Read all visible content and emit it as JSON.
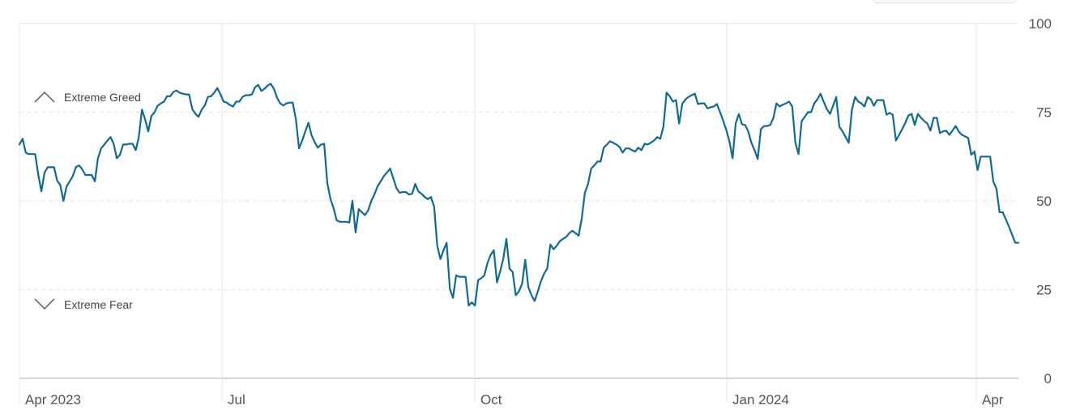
{
  "chart_data": {
    "type": "line",
    "ylim": [
      0,
      100
    ],
    "y_ticks": [
      0,
      25,
      50,
      75,
      100
    ],
    "x_tick_labels": [
      "Apr 2023",
      "Jul",
      "Oct",
      "Jan 2024",
      "Apr"
    ],
    "annotations": [
      {
        "text": "Extreme Greed",
        "icon": "chevron-up-icon"
      },
      {
        "text": "Extreme Fear",
        "icon": "chevron-down-icon"
      }
    ],
    "line_color": "#0e6a96",
    "grid": true,
    "series": [
      {
        "values": [
          65.9,
          67.5,
          63.6,
          63.2,
          63.2,
          63.2,
          57.3,
          52.7,
          58.0,
          59.5,
          59.5,
          59.5,
          55.7,
          54.5,
          50.0,
          54.1,
          55.5,
          57.0,
          59.6,
          60.0,
          58.9,
          57.3,
          57.3,
          57.3,
          55.5,
          62.0,
          64.8,
          65.9,
          67.0,
          68.0,
          66.1,
          62.0,
          63.0,
          65.9,
          65.9,
          66.1,
          66.1,
          64.3,
          68.0,
          75.7,
          73.0,
          69.6,
          73.9,
          75.0,
          76.8,
          77.5,
          78.0,
          79.5,
          79.5,
          80.7,
          81.1,
          80.5,
          80.2,
          80.0,
          80.0,
          75.9,
          74.6,
          73.7,
          75.7,
          76.9,
          79.3,
          79.5,
          80.5,
          81.8,
          80.0,
          78.0,
          77.7,
          77.0,
          76.6,
          78.0,
          78.0,
          79.3,
          79.8,
          79.8,
          80.0,
          82.0,
          82.7,
          81.0,
          81.6,
          82.5,
          83.0,
          81.6,
          79.1,
          77.5,
          76.9,
          77.5,
          77.7,
          77.7,
          73.0,
          64.8,
          67.0,
          69.6,
          72.0,
          68.5,
          66.5,
          65.0,
          65.9,
          66.1,
          55.0,
          50.5,
          48.0,
          44.5,
          44.1,
          44.1,
          44.1,
          43.9,
          50.0,
          41.1,
          47.7,
          46.8,
          46.0,
          47.3,
          50.0,
          51.8,
          54.1,
          55.5,
          57.0,
          58.0,
          59.1,
          56.4,
          53.6,
          52.3,
          52.5,
          52.5,
          51.8,
          52.0,
          54.8,
          52.7,
          52.0,
          51.1,
          50.5,
          51.1,
          48.4,
          37.3,
          33.6,
          36.1,
          38.2,
          25.2,
          22.7,
          29.0,
          28.6,
          28.6,
          28.6,
          20.5,
          21.4,
          20.5,
          27.7,
          28.2,
          29.0,
          32.5,
          34.8,
          36.1,
          27.0,
          30.0,
          33.6,
          39.3,
          30.9,
          30.0,
          23.4,
          24.5,
          26.6,
          33.4,
          25.7,
          23.4,
          21.8,
          24.5,
          27.3,
          29.5,
          30.9,
          37.7,
          36.4,
          37.3,
          38.6,
          39.3,
          39.8,
          40.9,
          41.6,
          40.9,
          40.2,
          45.0,
          52.3,
          54.8,
          59.1,
          60.0,
          61.1,
          61.1,
          65.0,
          65.9,
          66.8,
          66.4,
          65.9,
          65.2,
          63.6,
          64.8,
          64.8,
          64.3,
          63.9,
          65.0,
          64.3,
          66.1,
          65.9,
          66.4,
          67.0,
          68.0,
          67.5,
          71.0,
          80.5,
          79.5,
          78.0,
          78.4,
          71.8,
          77.3,
          78.6,
          79.3,
          79.8,
          80.2,
          77.3,
          77.5,
          77.5,
          76.1,
          76.4,
          76.6,
          77.3,
          75.0,
          72.7,
          70.0,
          66.8,
          62.0,
          71.8,
          74.5,
          71.6,
          71.4,
          69.6,
          66.4,
          64.3,
          61.8,
          70.2,
          71.1,
          71.1,
          71.4,
          73.4,
          77.5,
          76.6,
          77.1,
          77.5,
          78.0,
          76.6,
          66.4,
          63.2,
          72.5,
          73.7,
          75.0,
          75.0,
          77.5,
          78.6,
          80.2,
          78.0,
          75.9,
          74.5,
          76.8,
          79.3,
          70.9,
          69.6,
          68.0,
          66.4,
          75.7,
          79.3,
          78.0,
          77.5,
          76.6,
          79.3,
          78.6,
          76.8,
          78.4,
          78.4,
          78.4,
          74.3,
          74.8,
          74.3,
          67.0,
          68.6,
          70.2,
          72.0,
          74.1,
          74.5,
          71.4,
          74.5,
          73.4,
          72.5,
          71.8,
          69.8,
          73.4,
          73.4,
          69.1,
          69.6,
          69.8,
          68.6,
          69.8,
          71.1,
          69.6,
          68.6,
          68.2,
          67.7,
          63.0,
          63.9,
          58.7,
          62.5,
          62.5,
          62.5,
          62.5,
          55.5,
          53.4,
          46.8,
          46.8,
          44.8,
          42.7,
          40.5,
          38.2,
          38.2
        ]
      }
    ]
  }
}
